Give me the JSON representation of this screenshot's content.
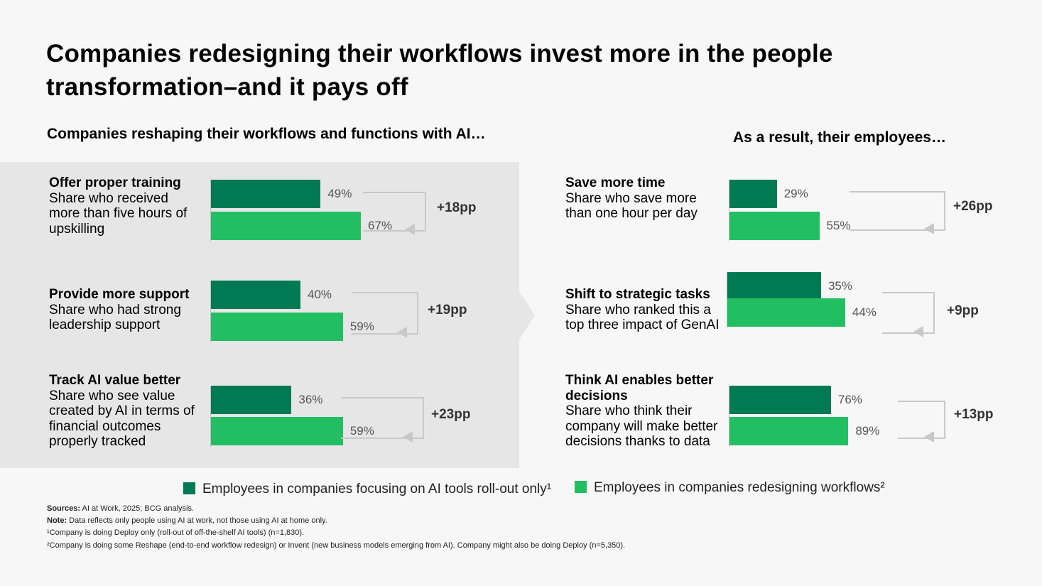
{
  "title": "Companies redesigning their workflows invest more in the people transformation–and it pays off",
  "left_heading": "Companies reshaping their workflows and functions with AI…",
  "right_heading": "As a result, their employees…",
  "colors": {
    "dark": "#007a53",
    "light": "#21bf61",
    "panel": "#e6e6e7"
  },
  "chart_data": {
    "type": "bar",
    "orientation": "horizontal",
    "series": [
      {
        "name": "Employees in companies focusing on AI tools roll-out only¹"
      },
      {
        "name": "Employees in companies redesigning workflows²"
      }
    ],
    "groups": [
      {
        "heading": "Offer proper training",
        "desc": "Share who received more than five hours of upskilling",
        "values": [
          49,
          67
        ],
        "labels": [
          "49%",
          "67%"
        ],
        "delta": "+18pp"
      },
      {
        "heading": "Provide more support",
        "desc": "Share who had strong leadership support",
        "values": [
          40,
          59
        ],
        "labels": [
          "40%",
          "59%"
        ],
        "delta": "+19pp"
      },
      {
        "heading": "Track AI value better",
        "desc": "Share who see value created by AI in terms of financial outcomes properly tracked",
        "values": [
          36,
          59
        ],
        "labels": [
          "36%",
          "59%"
        ],
        "delta": "+23pp"
      },
      {
        "heading": "Save more time",
        "desc": "Share who save more than one hour per day",
        "values": [
          29,
          55
        ],
        "labels": [
          "29%",
          "55%"
        ],
        "delta": "+26pp"
      },
      {
        "heading": "Shift to strategic tasks",
        "desc": "Share who ranked this a top three impact of GenAI",
        "values": [
          35,
          44
        ],
        "labels": [
          "35%",
          "44%"
        ],
        "delta": "+9pp"
      },
      {
        "heading": "Think AI enables better decisions",
        "desc": "Share who think their company will make better decisions thanks to data",
        "values": [
          76,
          89
        ],
        "labels": [
          "76%",
          "89%"
        ],
        "delta": "+13pp"
      }
    ]
  },
  "notes": {
    "sources_label": "Sources:",
    "sources": " AI at Work, 2025; BCG analysis.",
    "note_label": "Note:",
    "note": " Data reflects only people using AI at work, not those using AI at home only.",
    "footnote1": "¹Company is doing Deploy only (roll-out of off-the-shelf AI tools) (n=1,830).",
    "footnote2": "²Company is doing some Reshape (end-to-end workflow redesign) or Invent (new business models emerging from AI). Company might also be doing Deploy (n=5,350)."
  }
}
